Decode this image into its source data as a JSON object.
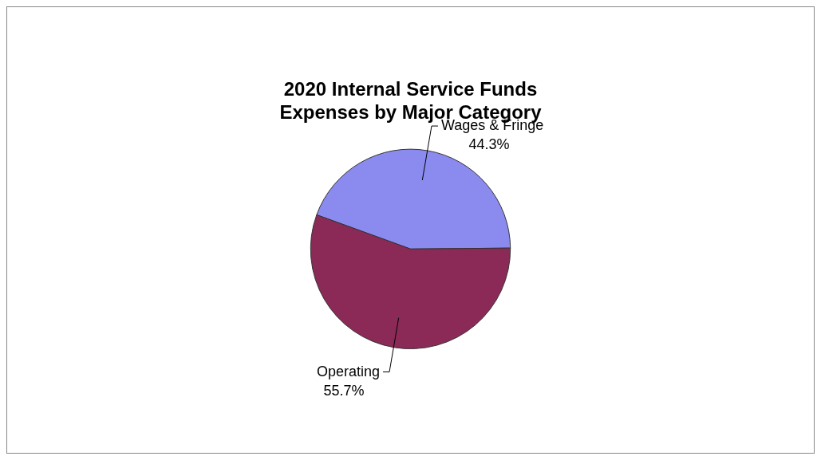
{
  "chart_data": {
    "type": "pie",
    "title": "2020 Internal Service Funds Expenses by Major Category",
    "categories": [
      "Wages & Fringe",
      "Operating"
    ],
    "values": [
      44.3,
      55.7
    ],
    "value_labels": [
      "44.3%",
      "55.7%"
    ],
    "colors": [
      "#8b8bef",
      "#8b2a57"
    ],
    "legend": false
  }
}
